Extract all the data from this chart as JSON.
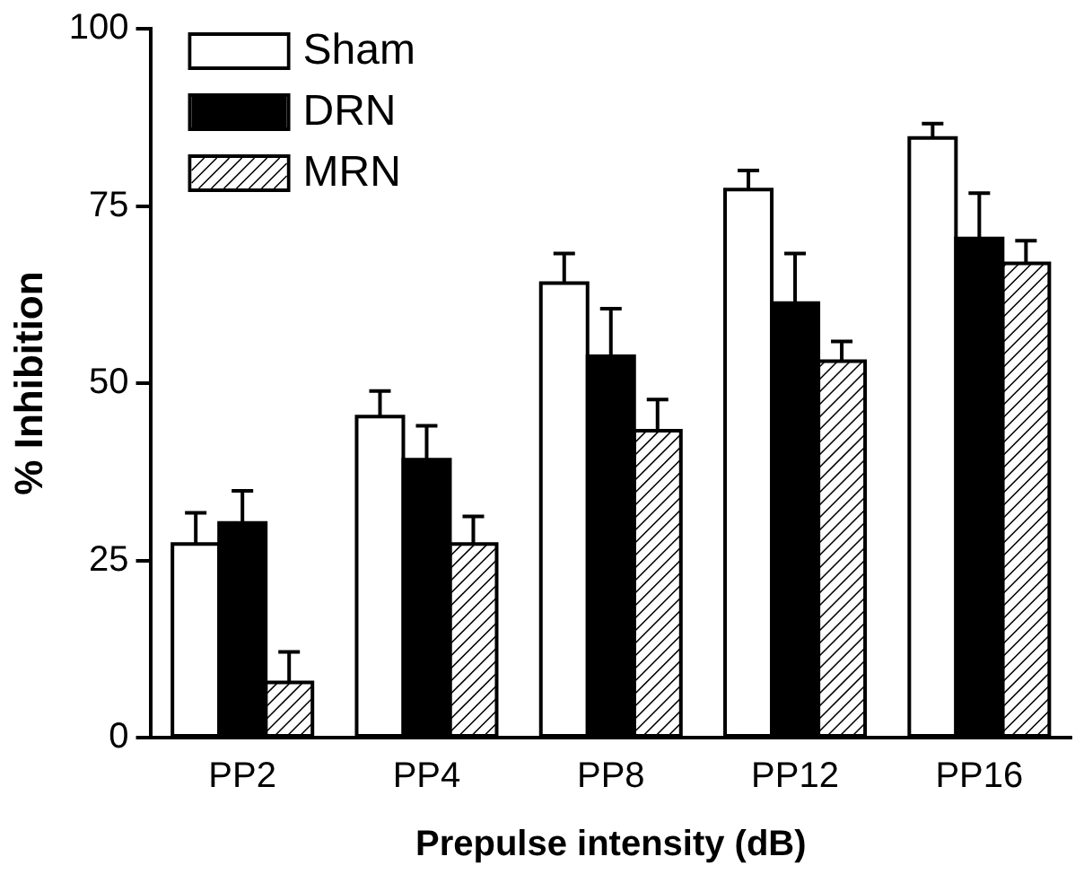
{
  "chart_data": {
    "type": "bar",
    "xlabel": "Prepulse intensity (dB)",
    "ylabel": "% Inhibition",
    "categories": [
      "PP2",
      "PP4",
      "PP8",
      "PP12",
      "PP16"
    ],
    "series": [
      {
        "name": "Sham",
        "color": "#ffffff",
        "values": [
          27.3,
          45.3,
          64.1,
          77.3,
          84.6
        ],
        "errors": [
          [
            27.3,
            31.7
          ],
          [
            45.3,
            48.9
          ],
          [
            64.1,
            68.3
          ],
          [
            77.3,
            80.0
          ],
          [
            84.6,
            86.6
          ]
        ]
      },
      {
        "name": "DRN",
        "color": "#000000",
        "values": [
          30.3,
          39.2,
          53.8,
          61.3,
          70.4
        ],
        "errors": [
          [
            30.3,
            34.8
          ],
          [
            39.2,
            44.0
          ],
          [
            53.8,
            60.5
          ],
          [
            61.3,
            68.3
          ],
          [
            70.4,
            76.8
          ]
        ]
      },
      {
        "name": "MRN",
        "color": "#ffffff",
        "values": [
          7.8,
          27.3,
          43.3,
          53.1,
          66.9
        ],
        "errors": [
          [
            7.8,
            12.1
          ],
          [
            27.3,
            31.2
          ],
          [
            43.3,
            47.7
          ],
          [
            53.1,
            55.9
          ],
          [
            66.9,
            70.1
          ]
        ]
      }
    ],
    "ylim": [
      0,
      100
    ],
    "yticks": [
      0,
      25,
      50,
      75,
      100
    ],
    "grid": false,
    "legend": "top left"
  }
}
